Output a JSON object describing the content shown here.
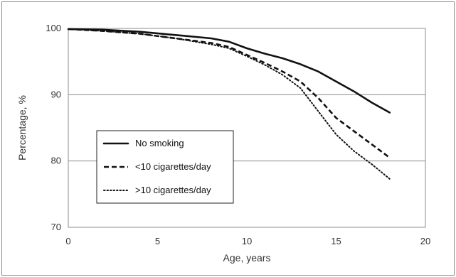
{
  "chart_data": {
    "type": "line",
    "title": "",
    "xlabel": "Age, years",
    "ylabel": "Percentage, %",
    "xlim": [
      0,
      20
    ],
    "ylim": [
      70,
      100
    ],
    "x_ticks": [
      "0",
      "5",
      "10",
      "15",
      "20"
    ],
    "y_ticks": [
      "70",
      "80",
      "90",
      "100"
    ],
    "grid": "horizontal",
    "legend_position": "left-middle",
    "series": [
      {
        "name": "No smoking",
        "style": "solid",
        "color": "#111111",
        "points": [
          [
            0,
            99.9
          ],
          [
            2,
            99.8
          ],
          [
            4,
            99.5
          ],
          [
            6,
            99.0
          ],
          [
            8,
            98.5
          ],
          [
            9,
            98.0
          ],
          [
            10,
            97.0
          ],
          [
            11,
            96.2
          ],
          [
            12,
            95.5
          ],
          [
            13,
            94.6
          ],
          [
            14,
            93.5
          ],
          [
            15,
            92.0
          ],
          [
            16,
            90.5
          ],
          [
            17,
            88.8
          ],
          [
            18,
            87.3
          ]
        ]
      },
      {
        "name": "<10 cigarettes/day",
        "style": "dashed",
        "color": "#111111",
        "points": [
          [
            0,
            99.9
          ],
          [
            2,
            99.6
          ],
          [
            4,
            99.2
          ],
          [
            6,
            98.5
          ],
          [
            8,
            97.8
          ],
          [
            9,
            97.2
          ],
          [
            10,
            96.0
          ],
          [
            11,
            94.8
          ],
          [
            12,
            93.5
          ],
          [
            13,
            92.0
          ],
          [
            14,
            89.5
          ],
          [
            15,
            86.5
          ],
          [
            16,
            84.5
          ],
          [
            17,
            82.5
          ],
          [
            18,
            80.5
          ]
        ]
      },
      {
        "name": ">10 cigarettes/day",
        "style": "dotted",
        "color": "#111111",
        "points": [
          [
            0,
            99.9
          ],
          [
            2,
            99.6
          ],
          [
            4,
            99.2
          ],
          [
            6,
            98.5
          ],
          [
            8,
            97.6
          ],
          [
            9,
            97.0
          ],
          [
            10,
            95.8
          ],
          [
            11,
            94.5
          ],
          [
            12,
            93.0
          ],
          [
            13,
            91.0
          ],
          [
            14,
            87.5
          ],
          [
            15,
            84.0
          ],
          [
            16,
            81.5
          ],
          [
            17,
            79.5
          ],
          [
            18,
            77.3
          ]
        ]
      }
    ]
  }
}
